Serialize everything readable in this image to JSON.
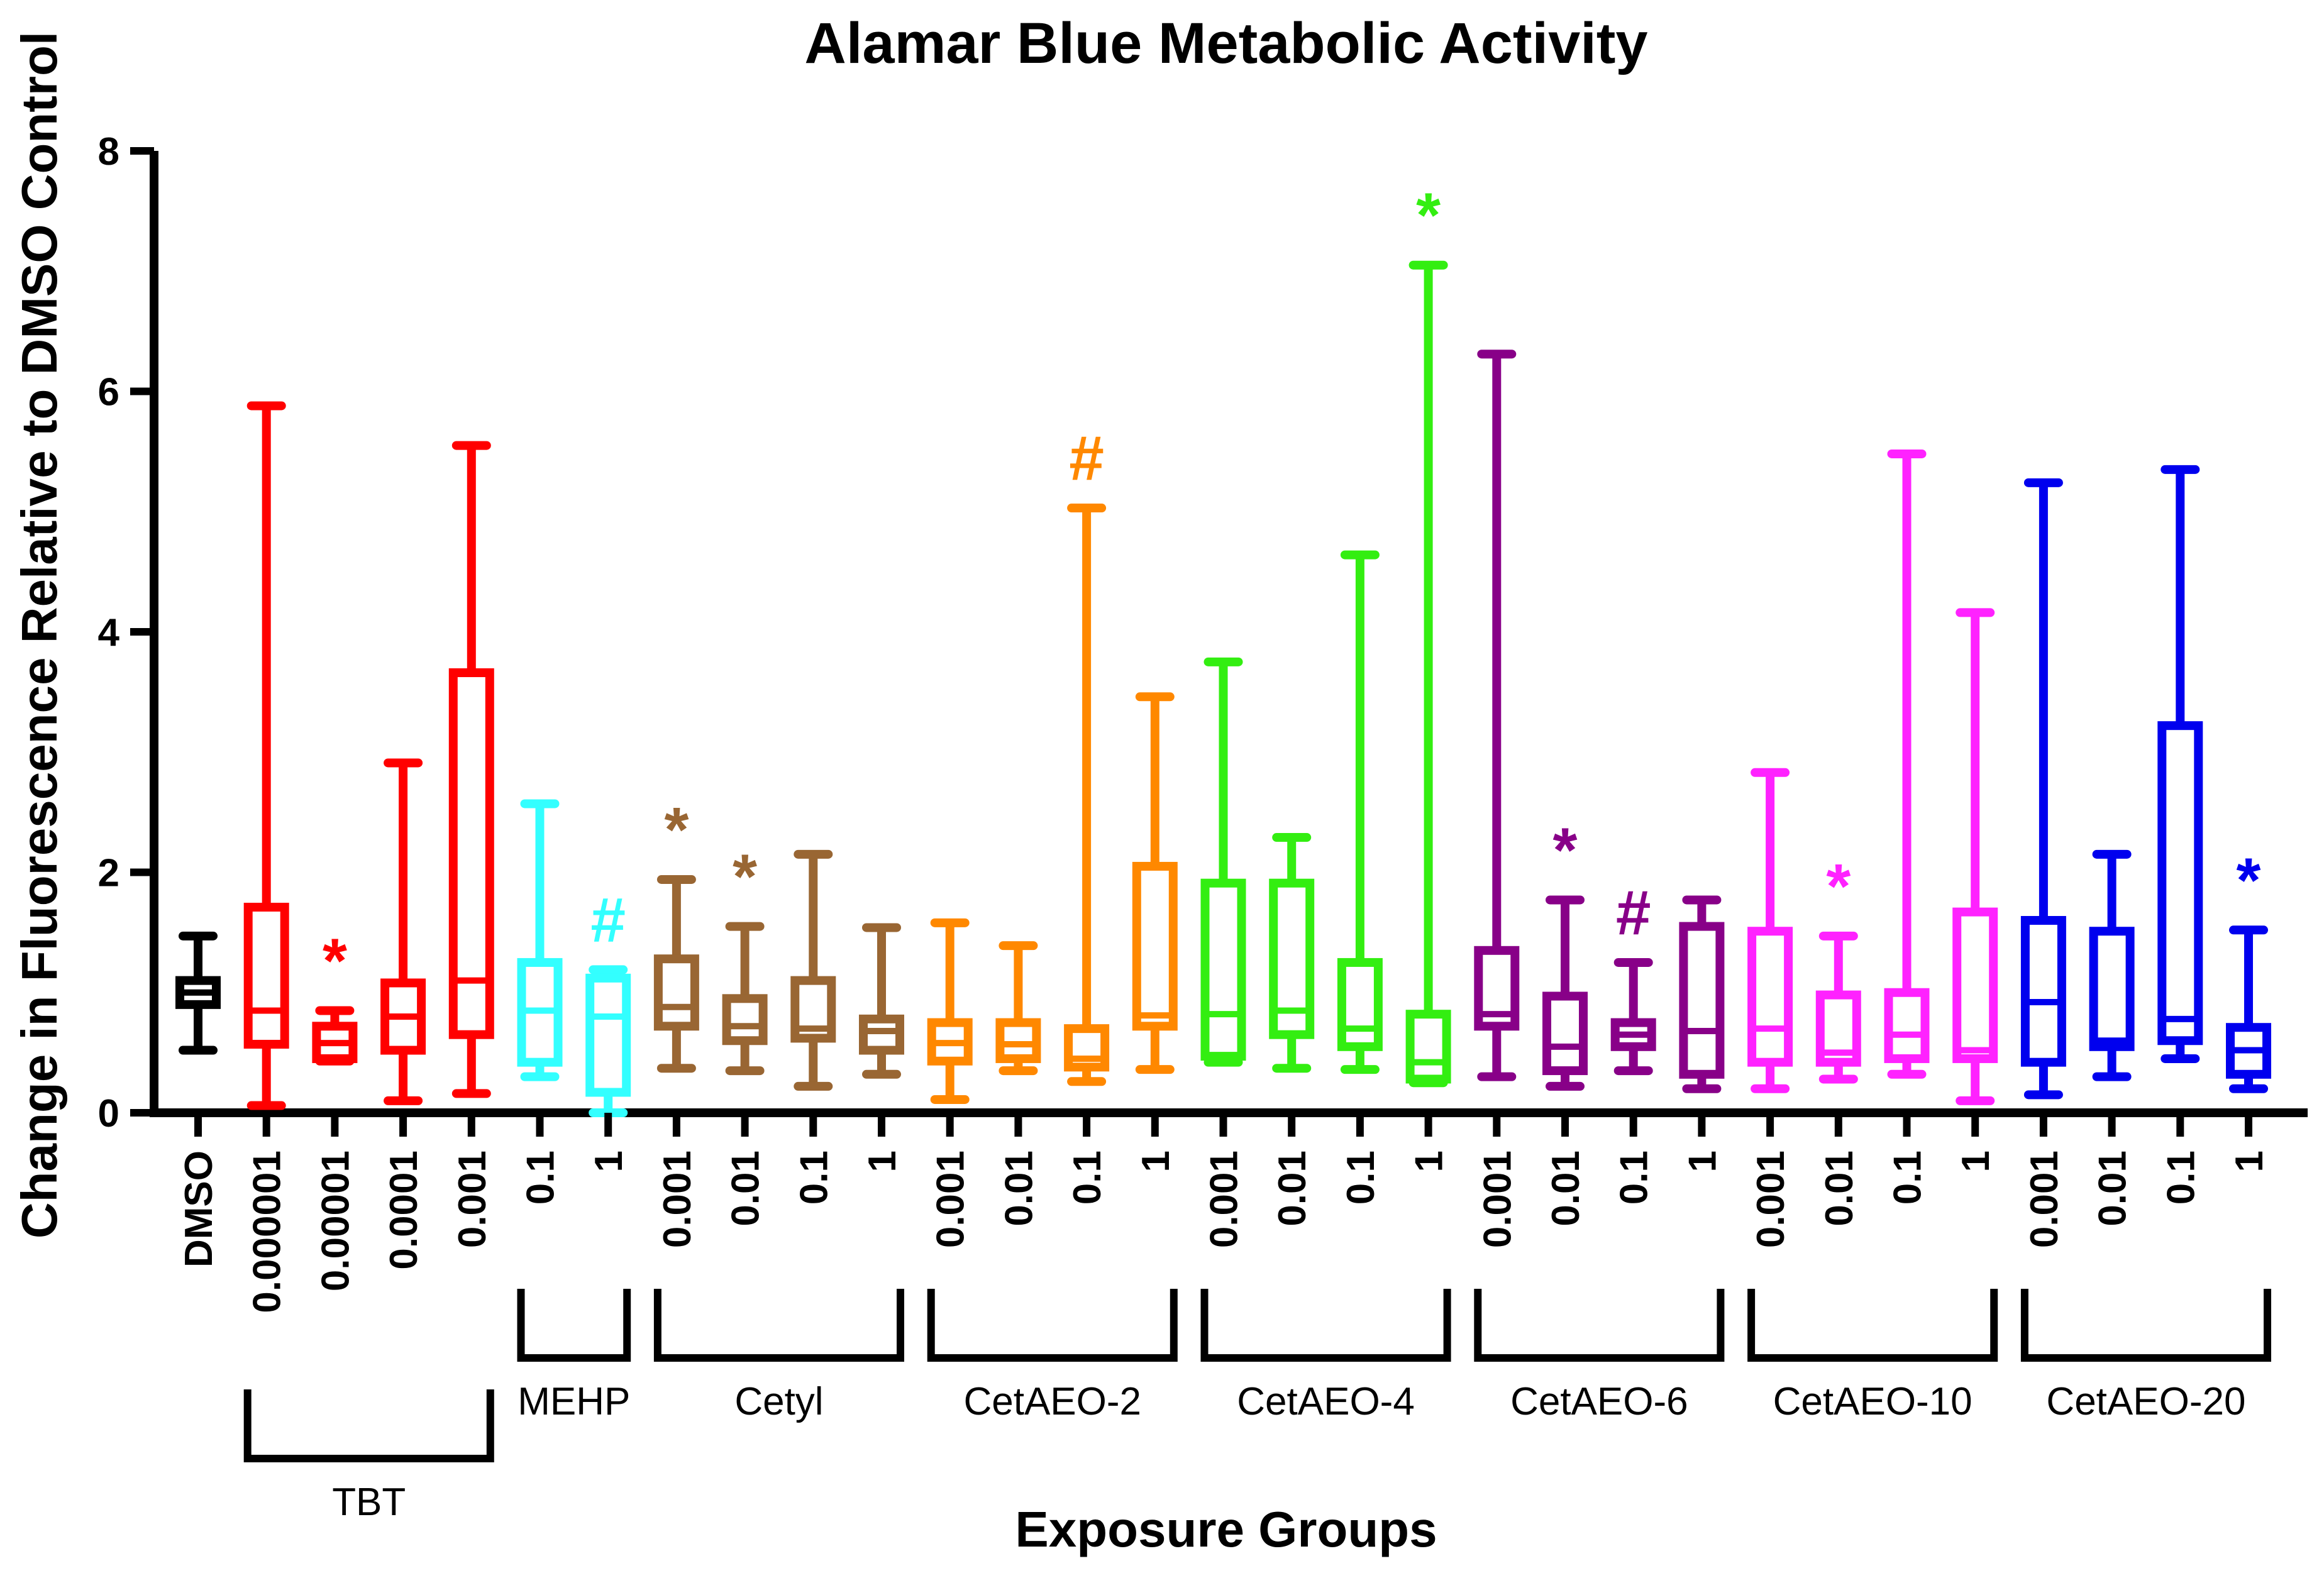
{
  "chart_data": {
    "type": "box",
    "title": "Alamar Blue Metabolic Activity",
    "xlabel": "Exposure Groups",
    "ylabel": "Change in Fluorescence Relative to DMSO Control",
    "ylim": [
      0,
      8
    ],
    "yticks": [
      "0",
      "2",
      "4",
      "6",
      "8"
    ],
    "series": [
      {
        "group": "",
        "label": "DMSO",
        "color": "#000000",
        "min": 0.52,
        "q1": 0.9,
        "median": 1.0,
        "q3": 1.1,
        "max": 1.47,
        "sig": ""
      },
      {
        "group": "TBT",
        "label": "0.000001",
        "color": "#ff0000",
        "min": 0.06,
        "q1": 0.57,
        "median": 0.85,
        "q3": 1.71,
        "max": 5.88,
        "sig": ""
      },
      {
        "group": "TBT",
        "label": "0.00001",
        "color": "#ff0000",
        "min": 0.43,
        "q1": 0.45,
        "median": 0.58,
        "q3": 0.72,
        "max": 0.85,
        "sig": "*"
      },
      {
        "group": "TBT",
        "label": "0.0001",
        "color": "#ff0000",
        "min": 0.1,
        "q1": 0.52,
        "median": 0.8,
        "q3": 1.08,
        "max": 2.91,
        "sig": ""
      },
      {
        "group": "TBT",
        "label": "0.001",
        "color": "#ff0000",
        "min": 0.16,
        "q1": 0.65,
        "median": 1.1,
        "q3": 3.66,
        "max": 5.55,
        "sig": ""
      },
      {
        "group": "MEHP",
        "label": "0.1",
        "color": "#33ffff",
        "min": 0.3,
        "q1": 0.42,
        "median": 0.85,
        "q3": 1.25,
        "max": 2.57,
        "sig": ""
      },
      {
        "group": "MEHP",
        "label": "1",
        "color": "#33ffff",
        "min": 0.0,
        "q1": 0.17,
        "median": 0.8,
        "q3": 1.12,
        "max": 1.19,
        "sig": "#"
      },
      {
        "group": "Cetyl",
        "label": "0.001",
        "color": "#996633",
        "min": 0.37,
        "q1": 0.72,
        "median": 0.88,
        "q3": 1.28,
        "max": 1.94,
        "sig": "*"
      },
      {
        "group": "Cetyl",
        "label": "0.01",
        "color": "#996633",
        "min": 0.35,
        "q1": 0.6,
        "median": 0.72,
        "q3": 0.95,
        "max": 1.55,
        "sig": "*"
      },
      {
        "group": "Cetyl",
        "label": "0.1",
        "color": "#996633",
        "min": 0.22,
        "q1": 0.62,
        "median": 0.7,
        "q3": 1.1,
        "max": 2.15,
        "sig": ""
      },
      {
        "group": "Cetyl",
        "label": "1",
        "color": "#996633",
        "min": 0.32,
        "q1": 0.52,
        "median": 0.68,
        "q3": 0.78,
        "max": 1.54,
        "sig": ""
      },
      {
        "group": "CetAEO-2",
        "label": "0.001",
        "color": "#ff8800",
        "min": 0.11,
        "q1": 0.43,
        "median": 0.58,
        "q3": 0.75,
        "max": 1.58,
        "sig": ""
      },
      {
        "group": "CetAEO-2",
        "label": "0.01",
        "color": "#ff8800",
        "min": 0.35,
        "q1": 0.45,
        "median": 0.57,
        "q3": 0.75,
        "max": 1.39,
        "sig": ""
      },
      {
        "group": "CetAEO-2",
        "label": "0.1",
        "color": "#ff8800",
        "min": 0.26,
        "q1": 0.38,
        "median": 0.45,
        "q3": 0.7,
        "max": 5.03,
        "sig": "#"
      },
      {
        "group": "CetAEO-2",
        "label": "1",
        "color": "#ff8800",
        "min": 0.36,
        "q1": 0.72,
        "median": 0.81,
        "q3": 2.05,
        "max": 3.46,
        "sig": ""
      },
      {
        "group": "CetAEO-4",
        "label": "0.001",
        "color": "#33ee11",
        "min": 0.42,
        "q1": 0.47,
        "median": 0.82,
        "q3": 1.91,
        "max": 3.75,
        "sig": ""
      },
      {
        "group": "CetAEO-4",
        "label": "0.01",
        "color": "#33ee11",
        "min": 0.37,
        "q1": 0.65,
        "median": 0.85,
        "q3": 1.91,
        "max": 2.29,
        "sig": ""
      },
      {
        "group": "CetAEO-4",
        "label": "0.1",
        "color": "#33ee11",
        "min": 0.36,
        "q1": 0.55,
        "median": 0.7,
        "q3": 1.25,
        "max": 4.64,
        "sig": ""
      },
      {
        "group": "CetAEO-4",
        "label": "1",
        "color": "#33ee11",
        "min": 0.25,
        "q1": 0.28,
        "median": 0.42,
        "q3": 0.82,
        "max": 7.05,
        "sig": "*"
      },
      {
        "group": "CetAEO-6",
        "label": "0.001",
        "color": "#880088",
        "min": 0.3,
        "q1": 0.72,
        "median": 0.82,
        "q3": 1.35,
        "max": 6.31,
        "sig": ""
      },
      {
        "group": "CetAEO-6",
        "label": "0.01",
        "color": "#880088",
        "min": 0.22,
        "q1": 0.35,
        "median": 0.55,
        "q3": 0.97,
        "max": 1.77,
        "sig": "*"
      },
      {
        "group": "CetAEO-6",
        "label": "0.1",
        "color": "#880088",
        "min": 0.35,
        "q1": 0.55,
        "median": 0.65,
        "q3": 0.75,
        "max": 1.25,
        "sig": "#"
      },
      {
        "group": "CetAEO-6",
        "label": "1",
        "color": "#880088",
        "min": 0.2,
        "q1": 0.32,
        "median": 0.68,
        "q3": 1.55,
        "max": 1.77,
        "sig": ""
      },
      {
        "group": "CetAEO-10",
        "label": "0.001",
        "color": "#ff22ff",
        "min": 0.2,
        "q1": 0.42,
        "median": 0.7,
        "q3": 1.51,
        "max": 2.83,
        "sig": ""
      },
      {
        "group": "CetAEO-10",
        "label": "0.01",
        "color": "#ff22ff",
        "min": 0.28,
        "q1": 0.42,
        "median": 0.5,
        "q3": 0.98,
        "max": 1.47,
        "sig": "*"
      },
      {
        "group": "CetAEO-10",
        "label": "0.1",
        "color": "#ff22ff",
        "min": 0.32,
        "q1": 0.45,
        "median": 0.65,
        "q3": 1.0,
        "max": 5.48,
        "sig": ""
      },
      {
        "group": "CetAEO-10",
        "label": "1",
        "color": "#ff22ff",
        "min": 0.1,
        "q1": 0.45,
        "median": 0.52,
        "q3": 1.67,
        "max": 4.16,
        "sig": ""
      },
      {
        "group": "CetAEO-20",
        "label": "0.001",
        "color": "#0000ee",
        "min": 0.15,
        "q1": 0.42,
        "median": 0.92,
        "q3": 1.6,
        "max": 5.24,
        "sig": ""
      },
      {
        "group": "CetAEO-20",
        "label": "0.01",
        "color": "#0000ee",
        "min": 0.3,
        "q1": 0.55,
        "median": 0.6,
        "q3": 1.51,
        "max": 2.15,
        "sig": ""
      },
      {
        "group": "CetAEO-20",
        "label": "0.1",
        "color": "#0000ee",
        "min": 0.45,
        "q1": 0.6,
        "median": 0.78,
        "q3": 3.22,
        "max": 5.35,
        "sig": ""
      },
      {
        "group": "CetAEO-20",
        "label": "1",
        "color": "#0000ee",
        "min": 0.2,
        "q1": 0.32,
        "median": 0.52,
        "q3": 0.71,
        "max": 1.52,
        "sig": "*"
      }
    ],
    "groups": [
      {
        "name": "TBT",
        "start": 1,
        "end": 4,
        "style": "below"
      },
      {
        "name": "MEHP",
        "start": 5,
        "end": 6,
        "style": "above"
      },
      {
        "name": "Cetyl",
        "start": 7,
        "end": 10,
        "style": "above"
      },
      {
        "name": "CetAEO-2",
        "start": 11,
        "end": 14,
        "style": "above"
      },
      {
        "name": "CetAEO-4",
        "start": 15,
        "end": 18,
        "style": "above"
      },
      {
        "name": "CetAEO-6",
        "start": 19,
        "end": 22,
        "style": "above"
      },
      {
        "name": "CetAEO-10",
        "start": 23,
        "end": 26,
        "style": "above"
      },
      {
        "name": "CetAEO-20",
        "start": 27,
        "end": 30,
        "style": "above"
      }
    ]
  }
}
